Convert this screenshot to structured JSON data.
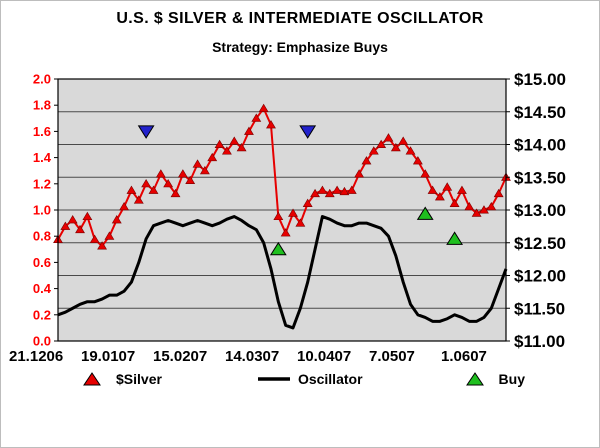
{
  "chart_data": {
    "type": "line",
    "title": "U.S. $ SILVER & INTERMEDIATE OSCILLATOR",
    "subtitle": "Strategy: Emphasize Buys",
    "plot_bg": "#d9d9d9",
    "grid_color": "#4a4a4a",
    "grid_divisions": 8,
    "x_tick_labels": [
      "21.1206",
      "19.0107",
      "15.0207",
      "14.0307",
      "10.0407",
      "7.0507",
      "1.0607"
    ],
    "left_axis": {
      "min": 0,
      "max": 2,
      "step": 0.2,
      "color": "#ff0000",
      "labels": [
        "2.0",
        "1.8",
        "1.6",
        "1.4",
        "1.2",
        "1.0",
        "0.8",
        "0.6",
        "0.4",
        "0.2",
        "0.0"
      ]
    },
    "right_axis": {
      "min": 11,
      "max": 15,
      "step": 0.5,
      "color": "#000000",
      "labels": [
        "$15.00",
        "$14.50",
        "$14.00",
        "$13.50",
        "$13.00",
        "$12.50",
        "$12.00",
        "$11.50",
        "$11.00"
      ]
    },
    "series": [
      {
        "name": "$Silver",
        "axis": "right",
        "color": "#e60000",
        "marker": "triangle-up",
        "values": [
          12.55,
          12.75,
          12.85,
          12.7,
          12.9,
          12.55,
          12.45,
          12.6,
          12.85,
          13.05,
          13.3,
          13.15,
          13.4,
          13.3,
          13.55,
          13.4,
          13.25,
          13.55,
          13.45,
          13.7,
          13.6,
          13.8,
          14.0,
          13.9,
          14.05,
          13.95,
          14.2,
          14.4,
          14.55,
          14.3,
          12.9,
          12.65,
          12.95,
          12.8,
          13.1,
          13.25,
          13.3,
          13.25,
          13.3,
          13.28,
          13.3,
          13.55,
          13.75,
          13.9,
          14.0,
          14.1,
          13.95,
          14.05,
          13.9,
          13.75,
          13.55,
          13.3,
          13.2,
          13.35,
          13.1,
          13.3,
          13.05,
          12.95,
          13.0,
          13.05,
          13.25,
          13.5
        ]
      },
      {
        "name": "Oscillator",
        "axis": "left",
        "color": "#000000",
        "marker": "none",
        "values": [
          0.2,
          0.22,
          0.25,
          0.28,
          0.3,
          0.3,
          0.32,
          0.35,
          0.35,
          0.38,
          0.45,
          0.6,
          0.78,
          0.88,
          0.9,
          0.92,
          0.9,
          0.88,
          0.9,
          0.92,
          0.9,
          0.88,
          0.9,
          0.93,
          0.95,
          0.92,
          0.88,
          0.85,
          0.75,
          0.55,
          0.3,
          0.12,
          0.1,
          0.25,
          0.45,
          0.7,
          0.95,
          0.93,
          0.9,
          0.88,
          0.88,
          0.9,
          0.9,
          0.88,
          0.86,
          0.8,
          0.65,
          0.45,
          0.28,
          0.2,
          0.18,
          0.15,
          0.15,
          0.17,
          0.2,
          0.18,
          0.15,
          0.15,
          0.18,
          0.25,
          0.4,
          0.55
        ]
      }
    ],
    "buy_markers": {
      "label": "Buy",
      "color": "#1fbf1f",
      "shape": "triangle-up",
      "points": [
        {
          "i": 30,
          "v": 0.7
        },
        {
          "i": 50,
          "v": 0.97
        },
        {
          "i": 54,
          "v": 0.78
        }
      ]
    },
    "blue_down_markers": {
      "color": "#2222cc",
      "shape": "triangle-down",
      "points": [
        {
          "i": 12,
          "v": 1.6
        },
        {
          "i": 34,
          "v": 1.6
        }
      ]
    },
    "legend": [
      {
        "label": "$Silver",
        "symbol": "triangle-up",
        "color": "#e60000"
      },
      {
        "label": "Oscillator",
        "symbol": "line",
        "color": "#000000"
      },
      {
        "label": "Buy",
        "symbol": "triangle-up",
        "color": "#1fbf1f"
      }
    ]
  }
}
